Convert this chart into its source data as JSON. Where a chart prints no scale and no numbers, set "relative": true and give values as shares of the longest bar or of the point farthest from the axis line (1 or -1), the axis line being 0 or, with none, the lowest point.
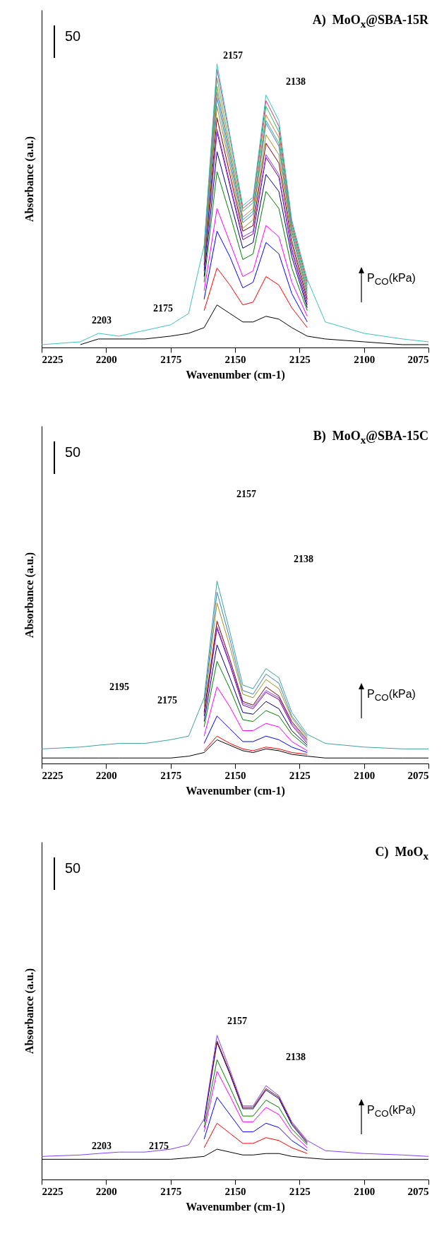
{
  "chart_data": [
    {
      "type": "line",
      "title": "A)  MoO$_{x}$@SBA-15R",
      "xlabel": "Wavenumber (cm-1)",
      "ylabel": "Absorbance (a.u.)",
      "relative": true,
      "xlim": [
        2225,
        2075
      ],
      "xticks": [
        2225,
        2200,
        2175,
        2150,
        2125,
        2100,
        2075
      ],
      "x": [
        2225,
        2210,
        2203,
        2195,
        2185,
        2175,
        2168,
        2162,
        2157,
        2152,
        2147,
        2143,
        2138,
        2133,
        2128,
        2122,
        2115,
        2100,
        2085,
        2075
      ],
      "annotations": [
        "50",
        "P$_{CO}$(kPa)",
        "2157",
        "2138",
        "2175",
        "2203"
      ],
      "series": [
        {
          "color": "#000000",
          "values": [
            null,
            0.01,
            0.03,
            0.03,
            0.03,
            0.04,
            0.05,
            0.07,
            0.15,
            0.12,
            0.09,
            0.09,
            0.11,
            0.1,
            0.07,
            0.04,
            0.03,
            0.02,
            0.01,
            0.01
          ]
        },
        {
          "color": "#ff0000",
          "values": [
            null,
            null,
            null,
            null,
            null,
            null,
            null,
            0.13,
            0.28,
            0.22,
            0.15,
            0.16,
            0.25,
            0.22,
            0.14,
            0.07,
            null,
            null,
            null,
            null
          ]
        },
        {
          "color": "#0000ff",
          "values": [
            null,
            null,
            null,
            null,
            null,
            null,
            null,
            0.17,
            0.41,
            0.32,
            0.21,
            0.23,
            0.37,
            0.33,
            0.19,
            0.09,
            null,
            null,
            null,
            null
          ]
        },
        {
          "color": "#ff00ff",
          "values": [
            null,
            null,
            null,
            null,
            null,
            null,
            null,
            0.2,
            0.49,
            0.37,
            0.25,
            0.27,
            0.43,
            0.39,
            0.23,
            0.11,
            null,
            null,
            null,
            null
          ]
        },
        {
          "color": "#008000",
          "values": [
            null,
            null,
            null,
            null,
            null,
            null,
            null,
            0.23,
            0.62,
            0.47,
            0.31,
            0.33,
            0.55,
            0.49,
            0.28,
            0.13,
            null,
            null,
            null,
            null
          ]
        },
        {
          "color": "#000080",
          "values": [
            null,
            null,
            null,
            null,
            null,
            null,
            null,
            0.25,
            0.69,
            0.52,
            0.35,
            0.37,
            0.61,
            0.55,
            0.32,
            0.14,
            null,
            null,
            null,
            null
          ]
        },
        {
          "color": "#800080",
          "values": [
            null,
            null,
            null,
            null,
            null,
            null,
            null,
            0.27,
            0.76,
            0.57,
            0.38,
            0.4,
            0.67,
            0.6,
            0.34,
            0.15,
            null,
            null,
            null,
            null
          ]
        },
        {
          "color": "#8040ff",
          "values": [
            null,
            null,
            null,
            null,
            null,
            null,
            null,
            0.28,
            0.77,
            0.58,
            0.39,
            0.41,
            0.68,
            0.61,
            0.35,
            0.16,
            null,
            null,
            null,
            null
          ]
        },
        {
          "color": "#800000",
          "values": [
            null,
            null,
            null,
            null,
            null,
            null,
            null,
            0.29,
            0.81,
            0.61,
            0.41,
            0.43,
            0.72,
            0.65,
            0.37,
            0.17,
            null,
            null,
            null,
            null
          ]
        },
        {
          "color": "#a09020",
          "values": [
            null,
            null,
            null,
            null,
            null,
            null,
            null,
            0.3,
            0.85,
            0.64,
            0.42,
            0.45,
            0.75,
            0.68,
            0.38,
            0.18,
            null,
            null,
            null,
            null
          ]
        },
        {
          "color": "#4080c0",
          "values": [
            null,
            null,
            null,
            null,
            null,
            null,
            null,
            0.31,
            0.88,
            0.66,
            0.44,
            0.47,
            0.79,
            0.71,
            0.4,
            0.19,
            null,
            null,
            null,
            null
          ]
        },
        {
          "color": "#40a0b0",
          "values": [
            null,
            null,
            null,
            null,
            null,
            null,
            null,
            0.32,
            0.9,
            0.68,
            0.45,
            0.48,
            0.8,
            0.72,
            0.41,
            0.2,
            null,
            null,
            null,
            null
          ]
        },
        {
          "color": "#c08040",
          "values": [
            null,
            null,
            null,
            null,
            null,
            null,
            null,
            0.33,
            0.92,
            0.69,
            0.46,
            0.49,
            0.82,
            0.74,
            0.42,
            0.21,
            null,
            null,
            null,
            null
          ]
        },
        {
          "color": "#30c060",
          "values": [
            null,
            null,
            null,
            null,
            null,
            null,
            null,
            0.34,
            0.95,
            0.71,
            0.48,
            0.51,
            0.85,
            0.76,
            0.43,
            0.22,
            null,
            null,
            null,
            null
          ]
        },
        {
          "color": "#c04080",
          "values": [
            null,
            null,
            null,
            null,
            null,
            null,
            null,
            0.35,
            0.98,
            0.74,
            0.49,
            0.52,
            0.87,
            0.78,
            0.44,
            0.23,
            null,
            null,
            null,
            null
          ]
        },
        {
          "color": "#40c0c0",
          "values": [
            0.01,
            0.02,
            0.05,
            0.04,
            0.06,
            0.08,
            0.12,
            0.36,
            1.0,
            0.75,
            0.5,
            0.53,
            0.89,
            0.8,
            0.45,
            0.24,
            0.09,
            0.05,
            0.03,
            0.02
          ]
        }
      ]
    },
    {
      "type": "line",
      "title": "B)  MoO$_{x}$@SBA-15C",
      "xlabel": "Wavenumber (cm-1)",
      "ylabel": "Absorbance (a.u.)",
      "relative": true,
      "xlim": [
        2225,
        2075
      ],
      "xticks": [
        2225,
        2200,
        2175,
        2150,
        2125,
        2100,
        2075
      ],
      "x": [
        2225,
        2210,
        2203,
        2195,
        2185,
        2175,
        2168,
        2162,
        2157,
        2152,
        2147,
        2143,
        2138,
        2133,
        2128,
        2122,
        2115,
        2100,
        2085,
        2075
      ],
      "annotations": [
        "50",
        "P$_{CO}$(kPa)",
        "2157",
        "2138",
        "2175",
        "2195"
      ],
      "series": [
        {
          "color": "#000000",
          "values": [
            0.03,
            0.03,
            0.03,
            0.03,
            0.03,
            0.03,
            0.04,
            0.06,
            0.13,
            0.1,
            0.07,
            0.06,
            0.08,
            0.07,
            0.05,
            0.04,
            0.03,
            0.03,
            0.03,
            0.03
          ]
        },
        {
          "color": "#ff0000",
          "values": [
            null,
            null,
            null,
            null,
            null,
            null,
            null,
            0.07,
            0.15,
            0.11,
            0.08,
            0.07,
            0.09,
            0.08,
            0.06,
            0.05,
            null,
            null,
            null,
            null
          ]
        },
        {
          "color": "#0000ff",
          "values": [
            null,
            null,
            null,
            null,
            null,
            null,
            null,
            0.11,
            0.26,
            0.19,
            0.12,
            0.12,
            0.15,
            0.13,
            0.09,
            0.06,
            null,
            null,
            null,
            null
          ]
        },
        {
          "color": "#ff00ff",
          "values": [
            null,
            null,
            null,
            null,
            null,
            null,
            null,
            0.15,
            0.42,
            0.31,
            0.18,
            0.18,
            0.22,
            0.2,
            0.12,
            0.07,
            null,
            null,
            null,
            null
          ]
        },
        {
          "color": "#008000",
          "values": [
            null,
            null,
            null,
            null,
            null,
            null,
            null,
            0.2,
            0.56,
            0.41,
            0.24,
            0.23,
            0.29,
            0.26,
            0.16,
            0.09,
            null,
            null,
            null,
            null
          ]
        },
        {
          "color": "#000080",
          "values": [
            null,
            null,
            null,
            null,
            null,
            null,
            null,
            0.23,
            0.65,
            0.47,
            0.28,
            0.27,
            0.34,
            0.3,
            0.18,
            0.1,
            null,
            null,
            null,
            null
          ]
        },
        {
          "color": "#800080",
          "values": [
            null,
            null,
            null,
            null,
            null,
            null,
            null,
            0.26,
            0.74,
            0.54,
            0.32,
            0.3,
            0.39,
            0.35,
            0.21,
            0.11,
            null,
            null,
            null,
            null
          ]
        },
        {
          "color": "#8040ff",
          "values": [
            null,
            null,
            null,
            null,
            null,
            null,
            null,
            0.27,
            0.75,
            0.55,
            0.33,
            0.31,
            0.4,
            0.36,
            0.22,
            0.12,
            null,
            null,
            null,
            null
          ]
        },
        {
          "color": "#800000",
          "values": [
            null,
            null,
            null,
            null,
            null,
            null,
            null,
            0.28,
            0.78,
            0.57,
            0.34,
            0.32,
            0.42,
            0.37,
            0.23,
            0.13,
            null,
            null,
            null,
            null
          ]
        },
        {
          "color": "#a09020",
          "values": [
            null,
            null,
            null,
            null,
            null,
            null,
            null,
            0.31,
            0.88,
            0.64,
            0.38,
            0.36,
            0.46,
            0.41,
            0.25,
            0.14,
            null,
            null,
            null,
            null
          ]
        },
        {
          "color": "#4080c0",
          "values": [
            null,
            null,
            null,
            null,
            null,
            null,
            null,
            0.33,
            0.94,
            0.68,
            0.4,
            0.38,
            0.49,
            0.44,
            0.26,
            0.15,
            null,
            null,
            null,
            null
          ]
        },
        {
          "color": "#40a0a0",
          "values": [
            0.08,
            0.09,
            0.1,
            0.11,
            0.11,
            0.13,
            0.15,
            0.36,
            1.0,
            0.72,
            0.43,
            0.41,
            0.52,
            0.47,
            0.28,
            0.16,
            0.11,
            0.09,
            0.08,
            0.08
          ]
        }
      ]
    },
    {
      "type": "line",
      "title": "C)  MoO$_{x}$",
      "xlabel": "Wavenumber (cm-1)",
      "ylabel": "Absorbance (a.u.)",
      "relative": true,
      "xlim": [
        2225,
        2075
      ],
      "xticks": [
        2225,
        2200,
        2175,
        2150,
        2125,
        2100,
        2075
      ],
      "x": [
        2225,
        2210,
        2203,
        2195,
        2185,
        2175,
        2168,
        2162,
        2157,
        2152,
        2147,
        2143,
        2138,
        2133,
        2128,
        2122,
        2115,
        2100,
        2085,
        2075
      ],
      "annotations": [
        "50",
        "P$_{CO}$(kPa)",
        "2157",
        "2138",
        "2175",
        "2203"
      ],
      "series": [
        {
          "color": "#000000",
          "values": [
            0.14,
            0.14,
            0.14,
            0.14,
            0.14,
            0.14,
            0.15,
            0.16,
            0.21,
            0.19,
            0.17,
            0.17,
            0.18,
            0.18,
            0.16,
            0.15,
            0.14,
            0.14,
            0.14,
            0.14
          ]
        },
        {
          "color": "#ff0000",
          "values": [
            null,
            null,
            null,
            null,
            null,
            null,
            null,
            0.22,
            0.39,
            0.32,
            0.25,
            0.25,
            0.29,
            0.27,
            0.22,
            0.18,
            null,
            null,
            null,
            null
          ]
        },
        {
          "color": "#0000ff",
          "values": [
            null,
            null,
            null,
            null,
            null,
            null,
            null,
            0.28,
            0.57,
            0.45,
            0.33,
            0.33,
            0.39,
            0.36,
            0.27,
            0.2,
            null,
            null,
            null,
            null
          ]
        },
        {
          "color": "#ff00ff",
          "values": [
            null,
            null,
            null,
            null,
            null,
            null,
            null,
            0.33,
            0.75,
            0.58,
            0.4,
            0.4,
            0.5,
            0.45,
            0.32,
            0.22,
            null,
            null,
            null,
            null
          ]
        },
        {
          "color": "#008000",
          "values": [
            null,
            null,
            null,
            null,
            null,
            null,
            null,
            0.36,
            0.83,
            0.64,
            0.44,
            0.44,
            0.55,
            0.5,
            0.35,
            0.24,
            null,
            null,
            null,
            null
          ]
        },
        {
          "color": "#000080",
          "values": [
            null,
            null,
            null,
            null,
            null,
            null,
            null,
            0.4,
            0.95,
            0.73,
            0.49,
            0.49,
            0.62,
            0.56,
            0.38,
            0.25,
            null,
            null,
            null,
            null
          ]
        },
        {
          "color": "#800000",
          "values": [
            null,
            null,
            null,
            null,
            null,
            null,
            null,
            0.41,
            0.96,
            0.74,
            0.5,
            0.5,
            0.63,
            0.57,
            0.39,
            0.26,
            null,
            null,
            null,
            null
          ]
        },
        {
          "color": "#8040ff",
          "values": [
            0.16,
            0.17,
            0.18,
            0.19,
            0.19,
            0.21,
            0.24,
            0.42,
            1.0,
            0.76,
            0.51,
            0.51,
            0.65,
            0.58,
            0.4,
            0.27,
            0.2,
            0.18,
            0.17,
            0.16
          ]
        }
      ]
    }
  ]
}
